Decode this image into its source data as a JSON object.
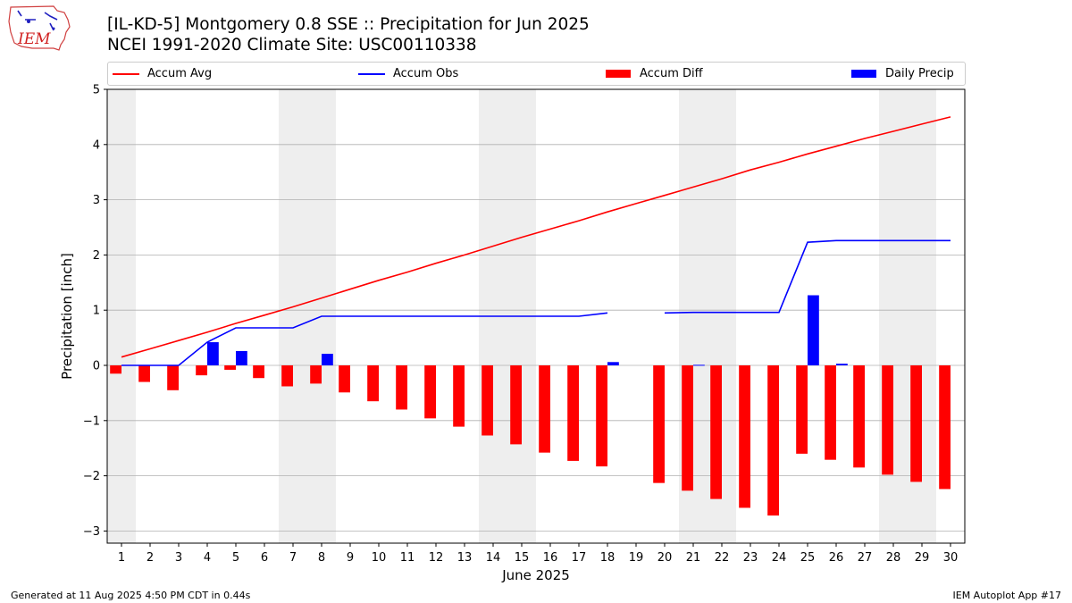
{
  "header": {
    "title_line1": "[IL-KD-5] Montgomery 0.8 SSE :: Precipitation for Jun 2025",
    "title_line2": "NCEI 1991-2020 Climate Site: USC00110338",
    "logo_text": "IEM"
  },
  "footer": {
    "generated": "Generated at 11 Aug 2025 4:50 PM CDT in 0.44s",
    "app": "IEM Autoplot App #17"
  },
  "colors": {
    "avg": "#ff0000",
    "obs": "#0000ff",
    "diff": "#ff0000",
    "daily": "#0000ff",
    "weekend_shade": "#eeeeee",
    "grid": "#b0b0b0"
  },
  "chart_data": {
    "type": "bar",
    "title": "[IL-KD-5] Montgomery 0.8 SSE :: Precipitation for Jun 2025",
    "subtitle": "NCEI 1991-2020 Climate Site: USC00110338",
    "xlabel": "June 2025",
    "ylabel": "Precipitation [inch]",
    "ylim": [
      -3.22,
      5
    ],
    "yticks": [
      5,
      4,
      3,
      2,
      1,
      0,
      -1,
      -2,
      -3
    ],
    "ytick_labels": [
      "5",
      "4",
      "3",
      "2",
      "1",
      "0",
      "−1",
      "−2",
      "−3"
    ],
    "grid": "horizontal",
    "legend_position": "top",
    "days": [
      1,
      2,
      3,
      4,
      5,
      6,
      7,
      8,
      9,
      10,
      11,
      12,
      13,
      14,
      15,
      16,
      17,
      18,
      19,
      20,
      21,
      22,
      23,
      24,
      25,
      26,
      27,
      28,
      29,
      30
    ],
    "weekend_shaded_days": [
      1,
      7,
      8,
      14,
      15,
      21,
      22,
      28,
      29
    ],
    "legend": [
      "Accum Avg",
      "Accum Obs",
      "Accum Diff",
      "Daily Precip"
    ],
    "series": [
      {
        "name": "Accum Avg",
        "kind": "line",
        "values": [
          0.15,
          0.3,
          0.45,
          0.6,
          0.76,
          0.91,
          1.06,
          1.22,
          1.38,
          1.54,
          1.69,
          1.85,
          2.0,
          2.16,
          2.32,
          2.47,
          2.62,
          2.78,
          2.93,
          3.08,
          3.23,
          3.38,
          3.54,
          3.68,
          3.83,
          3.97,
          4.11,
          4.24,
          4.37,
          4.5
        ]
      },
      {
        "name": "Accum Obs",
        "kind": "line",
        "values": [
          0.0,
          0.0,
          0.0,
          0.42,
          0.68,
          0.68,
          0.68,
          0.89,
          0.89,
          0.89,
          0.89,
          0.89,
          0.89,
          0.89,
          0.89,
          0.89,
          0.89,
          0.95,
          null,
          0.95,
          0.96,
          0.96,
          0.96,
          0.96,
          2.23,
          2.26,
          2.26,
          2.26,
          2.26,
          2.26
        ]
      },
      {
        "name": "Accum Diff",
        "kind": "bar",
        "values": [
          -0.15,
          -0.3,
          -0.45,
          -0.18,
          -0.08,
          -0.23,
          -0.38,
          -0.33,
          -0.49,
          -0.65,
          -0.8,
          -0.96,
          -1.11,
          -1.27,
          -1.43,
          -1.58,
          -1.73,
          -1.83,
          null,
          -2.13,
          -2.27,
          -2.42,
          -2.58,
          -2.72,
          -1.6,
          -1.71,
          -1.85,
          -1.98,
          -2.11,
          -2.24
        ]
      },
      {
        "name": "Daily Precip",
        "kind": "bar",
        "values": [
          0,
          0,
          0,
          0.42,
          0.26,
          0,
          0,
          0.21,
          0,
          0,
          0,
          0,
          0,
          0,
          0,
          0,
          0,
          0.06,
          null,
          0,
          0.01,
          0,
          0,
          0,
          1.27,
          0.03,
          0,
          0,
          0,
          0
        ]
      }
    ]
  }
}
